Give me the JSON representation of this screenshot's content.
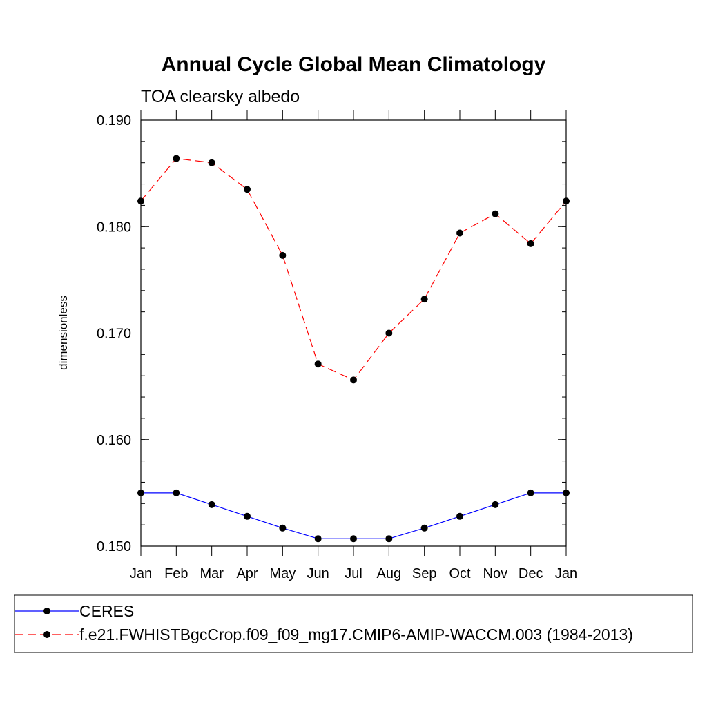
{
  "chart_data": {
    "type": "line",
    "title": "Annual Cycle Global Mean Climatology",
    "subtitle": "TOA clearsky albedo",
    "ylabel": "dimensionless",
    "xlabel": "",
    "categories": [
      "Jan",
      "Feb",
      "Mar",
      "Apr",
      "May",
      "Jun",
      "Jul",
      "Aug",
      "Sep",
      "Oct",
      "Nov",
      "Dec",
      "Jan"
    ],
    "ylim": [
      0.15,
      0.19
    ],
    "yticks": [
      0.15,
      0.16,
      0.17,
      0.18,
      0.19
    ],
    "ytick_labels": [
      "0.150",
      "0.160",
      "0.170",
      "0.180",
      "0.190"
    ],
    "grid": false,
    "legend_position": "bottom",
    "series": [
      {
        "name": "CERES",
        "color": "#0000ff",
        "style": "solid",
        "marker": "filled-circle",
        "values": [
          0.155,
          0.155,
          0.1539,
          0.1528,
          0.1517,
          0.1507,
          0.1507,
          0.1507,
          0.1517,
          0.1528,
          0.1539,
          0.155,
          0.155
        ]
      },
      {
        "name": "f.e21.FWHISTBgcCrop.f09_f09_mg17.CMIP6-AMIP-WACCM.003 (1984-2013)",
        "color": "#ff0000",
        "style": "dashed",
        "marker": "filled-circle",
        "values": [
          0.1824,
          0.1864,
          0.186,
          0.1835,
          0.1773,
          0.1671,
          0.1656,
          0.17,
          0.1732,
          0.1794,
          0.1812,
          0.1784,
          0.1824
        ]
      }
    ]
  }
}
